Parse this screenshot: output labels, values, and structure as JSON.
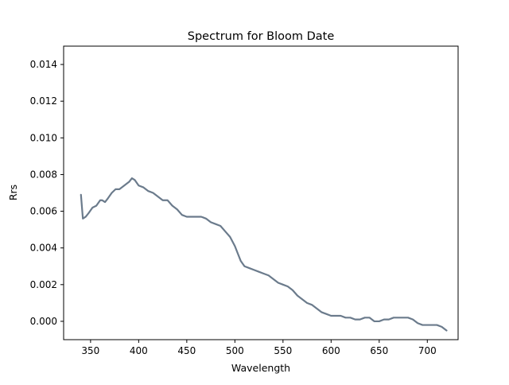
{
  "chart_data": {
    "type": "line",
    "title": "Spectrum for Bloom Date",
    "xlabel": "Wavelength",
    "ylabel": "Rrs",
    "xlim": [
      322,
      732
    ],
    "ylim": [
      -0.001,
      0.015
    ],
    "x_ticks": [
      350,
      400,
      450,
      500,
      550,
      600,
      650,
      700
    ],
    "x_tick_labels": [
      "350",
      "400",
      "450",
      "500",
      "550",
      "600",
      "650",
      "700"
    ],
    "y_ticks": [
      0.0,
      0.002,
      0.004,
      0.006,
      0.008,
      0.01,
      0.012,
      0.014
    ],
    "y_tick_labels": [
      "0.000",
      "0.002",
      "0.004",
      "0.006",
      "0.008",
      "0.010",
      "0.012",
      "0.014"
    ],
    "grid": false,
    "legend": "none",
    "line_color": "#6b7b8c",
    "series": [
      {
        "x": [
          340,
          342,
          345,
          348,
          352,
          356,
          360,
          362,
          365,
          368,
          372,
          376,
          380,
          385,
          390,
          393,
          396,
          400,
          405,
          410,
          415,
          420,
          425,
          430,
          435,
          440,
          445,
          450,
          455,
          460,
          465,
          470,
          475,
          480,
          485,
          490,
          495,
          500,
          503,
          506,
          510,
          515,
          520,
          525,
          530,
          535,
          540,
          545,
          550,
          555,
          560,
          565,
          570,
          575,
          580,
          585,
          590,
          595,
          600,
          605,
          610,
          615,
          620,
          625,
          630,
          635,
          640,
          645,
          650,
          655,
          660,
          665,
          670,
          675,
          680,
          685,
          690,
          695,
          700,
          705,
          710,
          715,
          720
        ],
        "y": [
          0.0069,
          0.0056,
          0.0057,
          0.0059,
          0.0062,
          0.0063,
          0.0066,
          0.0066,
          0.0065,
          0.0067,
          0.007,
          0.0072,
          0.0072,
          0.0074,
          0.0076,
          0.0078,
          0.0077,
          0.0074,
          0.0073,
          0.0071,
          0.007,
          0.0068,
          0.0066,
          0.0066,
          0.0063,
          0.0061,
          0.0058,
          0.0057,
          0.0057,
          0.0057,
          0.0057,
          0.0056,
          0.0054,
          0.0053,
          0.0052,
          0.0049,
          0.0046,
          0.0041,
          0.0037,
          0.0033,
          0.003,
          0.0029,
          0.0028,
          0.0027,
          0.0026,
          0.0025,
          0.0023,
          0.0021,
          0.002,
          0.0019,
          0.0017,
          0.0014,
          0.0012,
          0.001,
          0.0009,
          0.0007,
          0.0005,
          0.0004,
          0.0003,
          0.0003,
          0.0003,
          0.0002,
          0.0002,
          0.0001,
          0.0001,
          0.0002,
          0.0002,
          0.0,
          0.0,
          0.0001,
          0.0001,
          0.0002,
          0.0002,
          0.0002,
          0.0002,
          0.0001,
          -0.0001,
          -0.0002,
          -0.0002,
          -0.0002,
          -0.0002,
          -0.0003,
          -0.0005
        ]
      }
    ]
  }
}
